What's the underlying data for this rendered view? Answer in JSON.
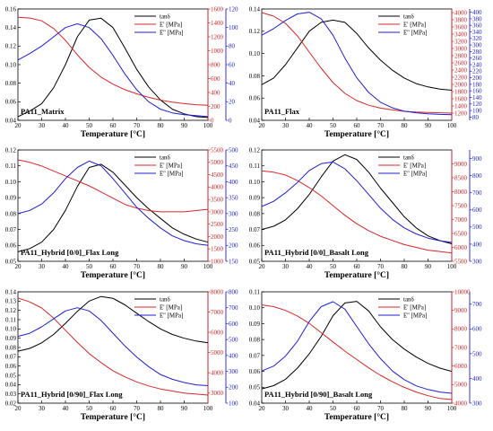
{
  "chart_data": [
    {
      "type": "line",
      "title": "PA11_Matrix",
      "xlabel": "Temperature [°C]",
      "xlim": [
        20,
        100
      ],
      "x": [
        20,
        25,
        30,
        35,
        40,
        45,
        50,
        55,
        60,
        65,
        70,
        75,
        80,
        85,
        90,
        95,
        100
      ],
      "axes": {
        "left": {
          "ylim": [
            0.04,
            0.16
          ],
          "ticks": [
            "0.04",
            "0.06",
            "0.08",
            "0.10",
            "0.12",
            "0.14",
            "0.16"
          ],
          "color": "#000000"
        },
        "right1": {
          "ylim": [
            0,
            1600
          ],
          "ticks": [
            "0",
            "200",
            "400",
            "600",
            "800",
            "1000",
            "1200",
            "1400",
            "1600"
          ],
          "color": "#d62728"
        },
        "right2": {
          "ylim": [
            0,
            120
          ],
          "ticks": [
            "0",
            "20",
            "40",
            "60",
            "80",
            "100",
            "120"
          ],
          "color": "#1f1fd6"
        }
      },
      "series": [
        {
          "name": "tanδ",
          "axis": "left",
          "color": "#000000",
          "values": [
            0.044,
            0.05,
            0.058,
            0.075,
            0.1,
            0.13,
            0.148,
            0.15,
            0.14,
            0.118,
            0.095,
            0.076,
            0.062,
            0.052,
            0.047,
            0.044,
            0.043
          ]
        },
        {
          "name": "E' [MPa]",
          "axis": "right1",
          "color": "#d62728",
          "values": [
            1480,
            1470,
            1430,
            1320,
            1150,
            940,
            760,
            620,
            520,
            440,
            380,
            330,
            290,
            260,
            240,
            225,
            215
          ]
        },
        {
          "name": "E'' [MPa]",
          "axis": "right2",
          "color": "#1f1fd6",
          "values": [
            65,
            72,
            80,
            90,
            100,
            104,
            100,
            88,
            70,
            50,
            33,
            20,
            12,
            8,
            6,
            5,
            4
          ]
        }
      ]
    },
    {
      "type": "line",
      "title": "PA11_Flax",
      "xlabel": "Temperature [°C]",
      "xlim": [
        20,
        100
      ],
      "x": [
        20,
        25,
        30,
        35,
        40,
        45,
        50,
        55,
        60,
        65,
        70,
        75,
        80,
        85,
        90,
        95,
        100
      ],
      "axes": {
        "left": {
          "ylim": [
            0.04,
            0.14
          ],
          "ticks": [
            "0.04",
            "0.06",
            "0.08",
            "0.10",
            "0.12",
            "0.14"
          ],
          "color": "#000000"
        },
        "right1": {
          "ylim": [
            1000,
            4100
          ],
          "ticks": [
            "1200",
            "1400",
            "1600",
            "1800",
            "2000",
            "2200",
            "2400",
            "2600",
            "2800",
            "3000",
            "3200",
            "3400",
            "3600",
            "3800",
            "4000"
          ],
          "color": "#d62728"
        },
        "right2": {
          "ylim": [
            70,
            410
          ],
          "ticks": [
            "80",
            "100",
            "120",
            "140",
            "160",
            "180",
            "200",
            "220",
            "240",
            "260",
            "280",
            "300",
            "320",
            "340",
            "360",
            "380",
            "400"
          ],
          "color": "#1f1fd6"
        }
      },
      "series": [
        {
          "name": "tanδ",
          "axis": "left",
          "color": "#000000",
          "values": [
            0.072,
            0.078,
            0.09,
            0.105,
            0.12,
            0.128,
            0.13,
            0.128,
            0.118,
            0.105,
            0.094,
            0.085,
            0.078,
            0.073,
            0.07,
            0.068,
            0.067
          ]
        },
        {
          "name": "E' [MPa]",
          "axis": "right1",
          "color": "#d62728",
          "values": [
            4000,
            3900,
            3700,
            3350,
            2900,
            2450,
            2050,
            1750,
            1550,
            1420,
            1340,
            1290,
            1250,
            1230,
            1220,
            1210,
            1200
          ]
        },
        {
          "name": "E'' [MPa]",
          "axis": "right2",
          "color": "#1f1fd6",
          "values": [
            330,
            350,
            375,
            395,
            400,
            380,
            330,
            260,
            200,
            155,
            125,
            108,
            98,
            93,
            90,
            88,
            87
          ]
        }
      ]
    },
    {
      "type": "line",
      "title": "PA11_Hybrid [0/0]_Flax Long",
      "xlabel": "Temperature [°C]",
      "xlim": [
        20,
        100
      ],
      "x": [
        20,
        25,
        30,
        35,
        40,
        45,
        50,
        55,
        60,
        65,
        70,
        75,
        80,
        85,
        90,
        95,
        100
      ],
      "axes": {
        "left": {
          "ylim": [
            0.05,
            0.12
          ],
          "ticks": [
            "0.05",
            "0.06",
            "0.07",
            "0.08",
            "0.09",
            "0.10",
            "0.11",
            "0.12"
          ],
          "color": "#000000"
        },
        "right1": {
          "ylim": [
            1000,
            5500
          ],
          "ticks": [
            "1000",
            "1500",
            "2000",
            "2500",
            "3000",
            "3500",
            "4000",
            "4500",
            "5000",
            "5500"
          ],
          "color": "#d62728"
        },
        "right2": {
          "ylim": [
            150,
            500
          ],
          "ticks": [
            "150",
            "200",
            "250",
            "300",
            "350",
            "400",
            "450",
            "500"
          ],
          "color": "#1f1fd6"
        }
      },
      "series": [
        {
          "name": "tanδ",
          "axis": "left",
          "color": "#000000",
          "values": [
            0.056,
            0.058,
            0.062,
            0.07,
            0.082,
            0.097,
            0.109,
            0.111,
            0.106,
            0.098,
            0.09,
            0.083,
            0.077,
            0.071,
            0.067,
            0.064,
            0.062
          ]
        },
        {
          "name": "E' [MPa]",
          "axis": "right1",
          "color": "#d62728",
          "values": [
            5100,
            5000,
            4850,
            4650,
            4450,
            4250,
            4050,
            3800,
            3550,
            3300,
            3150,
            3050,
            3000,
            3000,
            3000,
            3050,
            3100
          ]
        },
        {
          "name": "E'' [MPa]",
          "axis": "right2",
          "color": "#1f1fd6",
          "values": [
            300,
            310,
            330,
            365,
            410,
            445,
            465,
            450,
            410,
            365,
            320,
            285,
            255,
            230,
            215,
            205,
            200
          ]
        }
      ]
    },
    {
      "type": "line",
      "title": "PA11_Hybrid [0/0]_Basalt Long",
      "xlabel": "Temperature [°C]",
      "xlim": [
        20,
        100
      ],
      "x": [
        20,
        25,
        30,
        35,
        40,
        45,
        50,
        55,
        60,
        65,
        70,
        75,
        80,
        85,
        90,
        95,
        100
      ],
      "axes": {
        "left": {
          "ylim": [
            0.05,
            0.12
          ],
          "ticks": [
            "0.05",
            "0.06",
            "0.07",
            "0.08",
            "0.09",
            "0.10",
            "0.11",
            "0.12"
          ],
          "color": "#000000"
        },
        "right1": {
          "ylim": [
            5500,
            9500
          ],
          "ticks": [
            "5500",
            "6000",
            "6500",
            "7000",
            "7500",
            "8000",
            "8500",
            "9000"
          ],
          "color": "#d62728"
        },
        "right2": {
          "ylim": [
            300,
            950
          ],
          "ticks": [
            "300",
            "400",
            "500",
            "600",
            "700",
            "800",
            "900"
          ],
          "color": "#1f1fd6"
        }
      },
      "series": [
        {
          "name": "tanδ",
          "axis": "left",
          "color": "#000000",
          "values": [
            0.07,
            0.072,
            0.076,
            0.083,
            0.092,
            0.103,
            0.113,
            0.117,
            0.114,
            0.106,
            0.096,
            0.087,
            0.078,
            0.071,
            0.066,
            0.063,
            0.061
          ]
        },
        {
          "name": "E' [MPa]",
          "axis": "right1",
          "color": "#d62728",
          "values": [
            8750,
            8700,
            8600,
            8400,
            8150,
            7850,
            7500,
            7150,
            6850,
            6600,
            6400,
            6250,
            6100,
            6000,
            5900,
            5850,
            5800
          ]
        },
        {
          "name": "E'' [MPa]",
          "axis": "right2",
          "color": "#1f1fd6",
          "values": [
            620,
            650,
            700,
            760,
            830,
            870,
            880,
            840,
            770,
            690,
            610,
            545,
            495,
            460,
            435,
            420,
            410
          ]
        }
      ]
    },
    {
      "type": "line",
      "title": "PA11_Hybrid [0/90]_Flax Long",
      "xlabel": "Temperature [°C]",
      "xlim": [
        20,
        100
      ],
      "x": [
        20,
        25,
        30,
        35,
        40,
        45,
        50,
        55,
        60,
        65,
        70,
        75,
        80,
        85,
        90,
        95,
        100
      ],
      "axes": {
        "left": {
          "ylim": [
            0.02,
            0.14
          ],
          "ticks": [
            "0.02",
            "0.03",
            "0.04",
            "0.05",
            "0.06",
            "0.07",
            "0.08",
            "0.09",
            "0.10",
            "0.11",
            "0.12",
            "0.13",
            "0.14"
          ],
          "color": "#000000"
        },
        "right1": {
          "ylim": [
            2500,
            8000
          ],
          "ticks": [
            "3000",
            "4000",
            "5000",
            "6000",
            "7000",
            "8000"
          ],
          "color": "#d62728"
        },
        "right2": {
          "ylim": [
            100,
            800
          ],
          "ticks": [
            "100",
            "200",
            "300",
            "400",
            "500",
            "600",
            "700",
            "800"
          ],
          "color": "#1f1fd6"
        }
      },
      "series": [
        {
          "name": "tanδ",
          "axis": "left",
          "color": "#000000",
          "values": [
            0.076,
            0.079,
            0.085,
            0.094,
            0.106,
            0.119,
            0.13,
            0.135,
            0.133,
            0.126,
            0.117,
            0.108,
            0.1,
            0.094,
            0.09,
            0.087,
            0.085
          ]
        },
        {
          "name": "E' [MPa]",
          "axis": "right1",
          "color": "#d62728",
          "values": [
            7700,
            7500,
            7200,
            6700,
            6100,
            5500,
            4950,
            4500,
            4100,
            3800,
            3550,
            3350,
            3200,
            3100,
            3000,
            2950,
            2900
          ]
        },
        {
          "name": "E'' [MPa]",
          "axis": "right2",
          "color": "#1f1fd6",
          "values": [
            520,
            540,
            580,
            630,
            680,
            700,
            680,
            620,
            540,
            460,
            390,
            330,
            280,
            250,
            230,
            215,
            210
          ]
        }
      ]
    },
    {
      "type": "line",
      "title": "PA11_Hybrid [0/90]_Basalt Long",
      "xlabel": "Temperature [°C]",
      "xlim": [
        20,
        100
      ],
      "x": [
        20,
        25,
        30,
        35,
        40,
        45,
        50,
        55,
        60,
        65,
        70,
        75,
        80,
        85,
        90,
        95,
        100
      ],
      "axes": {
        "left": {
          "ylim": [
            0.04,
            0.11
          ],
          "ticks": [
            "0.04",
            "0.05",
            "0.06",
            "0.07",
            "0.08",
            "0.09",
            "0.10",
            "0.11"
          ],
          "color": "#000000"
        },
        "right1": {
          "ylim": [
            4000,
            10000
          ],
          "ticks": [
            "4000",
            "5000",
            "6000",
            "7000",
            "8000",
            "9000",
            "10000"
          ],
          "color": "#d62728"
        },
        "right2": {
          "ylim": [
            300,
            750
          ],
          "ticks": [
            "300",
            "400",
            "500",
            "600",
            "700"
          ],
          "color": "#1f1fd6"
        }
      },
      "series": [
        {
          "name": "tanδ",
          "axis": "left",
          "color": "#000000",
          "values": [
            0.049,
            0.051,
            0.055,
            0.062,
            0.071,
            0.082,
            0.095,
            0.103,
            0.104,
            0.098,
            0.088,
            0.08,
            0.074,
            0.069,
            0.065,
            0.062,
            0.06
          ]
        },
        {
          "name": "E' [MPa]",
          "axis": "right1",
          "color": "#d62728",
          "values": [
            9300,
            9200,
            9000,
            8700,
            8300,
            7800,
            7300,
            6800,
            6350,
            5900,
            5500,
            5150,
            4850,
            4600,
            4400,
            4250,
            4200
          ]
        },
        {
          "name": "E'' [MPa]",
          "axis": "right2",
          "color": "#1f1fd6",
          "values": [
            430,
            450,
            490,
            550,
            630,
            690,
            710,
            680,
            610,
            540,
            480,
            430,
            395,
            370,
            355,
            345,
            340
          ]
        }
      ]
    }
  ]
}
